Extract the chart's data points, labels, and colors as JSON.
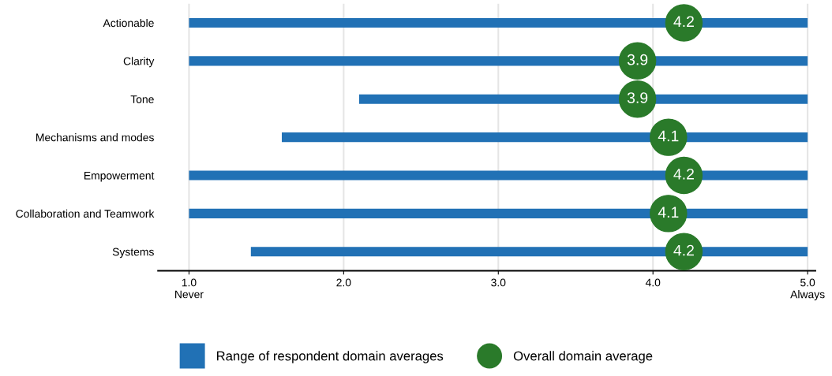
{
  "chart_data": {
    "type": "bar",
    "orientation": "horizontal",
    "categories": [
      "Actionable",
      "Clarity",
      "Tone",
      "Mechanisms and modes",
      "Empowerment",
      "Collaboration and Teamwork",
      "Systems"
    ],
    "series": [
      {
        "name": "Range of respondent domain averages",
        "color": "#2171b5",
        "base": [
          1.0,
          1.0,
          2.1,
          1.6,
          1.0,
          1.0,
          1.4
        ],
        "values": [
          4.0,
          4.0,
          2.9,
          3.4,
          4.0,
          4.0,
          3.6
        ]
      },
      {
        "name": "Overall domain average",
        "type": "scatter",
        "color": "#2a7a2a",
        "marker": "circle",
        "values": [
          4.2,
          3.9,
          3.9,
          4.1,
          4.2,
          4.1,
          4.2
        ],
        "value_labels": [
          "4.2",
          "3.9",
          "3.9",
          "4.1",
          "4.2",
          "4.1",
          "4.2"
        ]
      }
    ],
    "xlim": [
      0.8,
      5.05
    ],
    "xticks": [
      {
        "value": 1,
        "label": "1.0\nNever"
      },
      {
        "value": 2,
        "label": "2.0"
      },
      {
        "value": 3,
        "label": "3.0"
      },
      {
        "value": 4,
        "label": "4.0"
      },
      {
        "value": 5,
        "label": "5.0\nAlways"
      }
    ],
    "grid": "x",
    "legend": "bottom"
  }
}
